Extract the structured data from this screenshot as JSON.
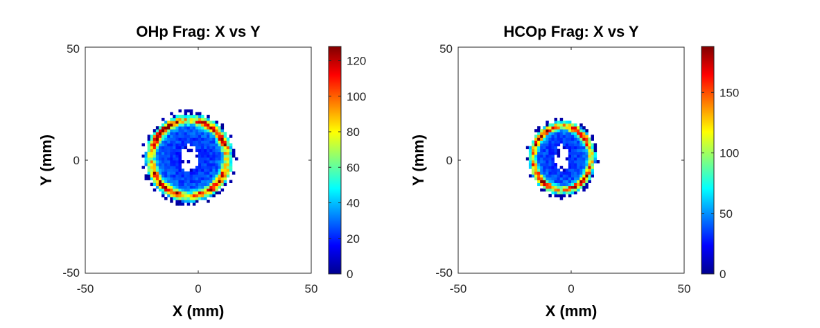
{
  "chart_data": [
    {
      "type": "heatmap",
      "title": "OHp Frag: X vs Y",
      "xlabel": "X (mm)",
      "ylabel": "Y (mm)",
      "xlim": [
        -50,
        50
      ],
      "ylim": [
        -50,
        50
      ],
      "xticks": [
        -50,
        0,
        50
      ],
      "yticks": [
        -50,
        0,
        50
      ],
      "colormap": "jet",
      "clim": [
        0,
        128
      ],
      "colorbar_ticks": [
        0,
        20,
        40,
        60,
        80,
        100,
        120
      ],
      "distribution": {
        "center_x": -4,
        "center_y": 1,
        "ring_radius_x": 19,
        "ring_radius_y": 19,
        "hole_radius_x": 4,
        "hole_radius_y": 6,
        "peak": 128
      }
    },
    {
      "type": "heatmap",
      "title": "HCOp Frag: X vs Y",
      "xlabel": "X (mm)",
      "ylabel": "Y (mm)",
      "xlim": [
        -50,
        50
      ],
      "ylim": [
        -50,
        50
      ],
      "xticks": [
        -50,
        0,
        50
      ],
      "yticks": [
        -50,
        0,
        50
      ],
      "colormap": "jet",
      "clim": [
        0,
        188
      ],
      "colorbar_ticks": [
        0,
        50,
        100,
        150
      ],
      "distribution": {
        "center_x": -4,
        "center_y": 1,
        "ring_radius_x": 14.5,
        "ring_radius_y": 16,
        "hole_radius_x": 3,
        "hole_radius_y": 6,
        "peak": 188
      }
    }
  ]
}
